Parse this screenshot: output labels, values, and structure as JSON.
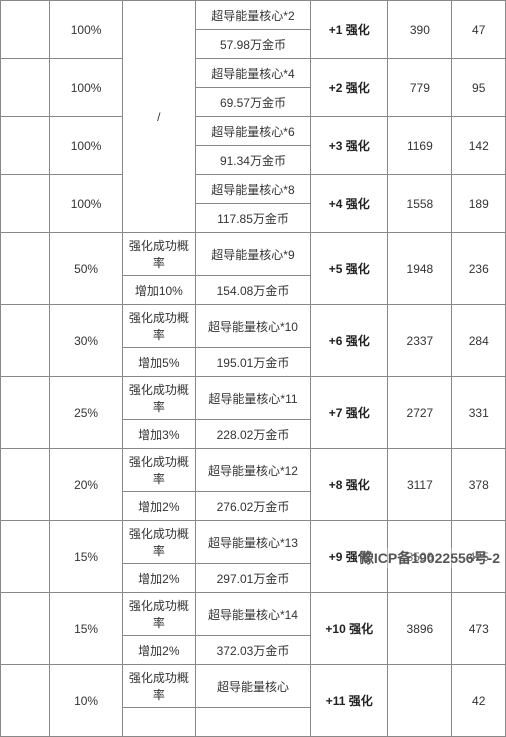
{
  "table": {
    "col_widths": [
      "46px",
      "68px",
      "68px",
      "108px",
      "72px",
      "60px",
      "50px"
    ],
    "slash_cell": "/",
    "rows": [
      {
        "pct": "100%",
        "bonus": null,
        "mat1": "超导能量核心*2",
        "mat2": "57.98万金币",
        "lvl": "+1 强化",
        "v1": "390",
        "v2": "47"
      },
      {
        "pct": "100%",
        "bonus": null,
        "mat1": "超导能量核心*4",
        "mat2": "69.57万金币",
        "lvl": "+2 强化",
        "v1": "779",
        "v2": "95"
      },
      {
        "pct": "100%",
        "bonus": null,
        "mat1": "超导能量核心*6",
        "mat2": "91.34万金币",
        "lvl": "+3 强化",
        "v1": "1169",
        "v2": "142"
      },
      {
        "pct": "100%",
        "bonus": null,
        "mat1": "超导能量核心*8",
        "mat2": "117.85万金币",
        "lvl": "+4 强化",
        "v1": "1558",
        "v2": "189"
      },
      {
        "pct": "50%",
        "bonus1": "强化成功概率",
        "bonus2": "增加10%",
        "mat1": "超导能量核心*9",
        "mat2": "154.08万金币",
        "lvl": "+5 强化",
        "v1": "1948",
        "v2": "236"
      },
      {
        "pct": "30%",
        "bonus1": "强化成功概率",
        "bonus2": "增加5%",
        "mat1": "超导能量核心*10",
        "mat2": "195.01万金币",
        "lvl": "+6 强化",
        "v1": "2337",
        "v2": "284"
      },
      {
        "pct": "25%",
        "bonus1": "强化成功概率",
        "bonus2": "增加3%",
        "mat1": "超导能量核心*11",
        "mat2": "228.02万金币",
        "lvl": "+7 强化",
        "v1": "2727",
        "v2": "331"
      },
      {
        "pct": "20%",
        "bonus1": "强化成功概率",
        "bonus2": "增加2%",
        "mat1": "超导能量核心*12",
        "mat2": "276.02万金币",
        "lvl": "+8 强化",
        "v1": "3117",
        "v2": "378"
      },
      {
        "pct": "15%",
        "bonus1": "强化成功概率",
        "bonus2": "增加2%",
        "mat1": "超导能量核心*13",
        "mat2": "297.01万金币",
        "lvl": "+9 强化",
        "v1": "3506",
        "v2": "425"
      },
      {
        "pct": "15%",
        "bonus1": "强化成功概率",
        "bonus2": "增加2%",
        "mat1": "超导能量核心*14",
        "mat2": "372.03万金币",
        "lvl": "+10 强化",
        "v1": "3896",
        "v2": "473"
      },
      {
        "pct": "10%",
        "bonus1": "强化成功概率",
        "bonus2": "",
        "mat1": "超导能量核心",
        "mat2": "",
        "lvl": "+11 强化",
        "v1": "",
        "v2": "42"
      }
    ]
  },
  "footer": "豫ICP备19022556号-2"
}
